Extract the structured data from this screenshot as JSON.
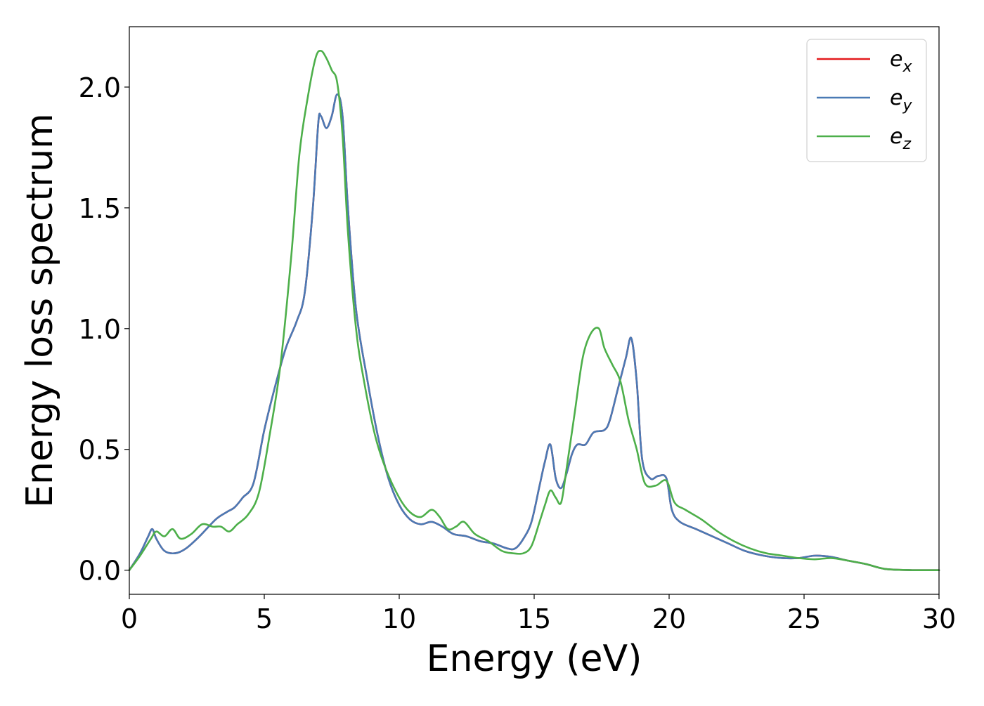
{
  "chart_data": {
    "type": "line",
    "xlabel": "Energy (eV)",
    "ylabel": "Energy loss spectrum",
    "xlim": [
      0,
      30
    ],
    "ylim": [
      -0.1,
      2.25
    ],
    "xticks": [
      0,
      5,
      10,
      15,
      20,
      25,
      30
    ],
    "xtick_labels": [
      "0",
      "5",
      "10",
      "15",
      "20",
      "25",
      "30"
    ],
    "yticks": [
      0.0,
      0.5,
      1.0,
      1.5,
      2.0
    ],
    "ytick_labels": [
      "0.0",
      "0.5",
      "1.0",
      "1.5",
      "2.0"
    ],
    "grid": false,
    "legend_position": "top-right",
    "series": [
      {
        "name": "e_x",
        "label_main": "e",
        "label_sub": "x",
        "color": "#e41a1c",
        "x": [
          0,
          0.4,
          0.7,
          0.85,
          1.0,
          1.3,
          1.7,
          2.1,
          2.6,
          3.2,
          3.6,
          3.9,
          4.2,
          4.6,
          5.0,
          5.4,
          5.8,
          6.2,
          6.5,
          6.8,
          7.0,
          7.1,
          7.3,
          7.5,
          7.7,
          7.9,
          8.1,
          8.4,
          8.8,
          9.2,
          9.6,
          10.0,
          10.4,
          10.8,
          11.2,
          11.6,
          12.0,
          12.5,
          13.0,
          13.5,
          14.0,
          14.3,
          14.6,
          14.9,
          15.2,
          15.4,
          15.6,
          15.8,
          16.0,
          16.2,
          16.4,
          16.6,
          16.9,
          17.2,
          17.6,
          17.8,
          18.1,
          18.4,
          18.6,
          18.8,
          19.0,
          19.3,
          19.6,
          19.9,
          20.1,
          20.4,
          21.0,
          21.6,
          22.2,
          22.8,
          23.5,
          24.2,
          24.8,
          25.4,
          26.0,
          26.6,
          27.3,
          28.0,
          29.0,
          30.0
        ],
        "values": [
          0.0,
          0.07,
          0.14,
          0.17,
          0.13,
          0.08,
          0.07,
          0.09,
          0.14,
          0.21,
          0.24,
          0.26,
          0.3,
          0.36,
          0.58,
          0.76,
          0.92,
          1.03,
          1.15,
          1.5,
          1.85,
          1.88,
          1.83,
          1.88,
          1.97,
          1.88,
          1.5,
          1.08,
          0.8,
          0.56,
          0.38,
          0.27,
          0.21,
          0.19,
          0.2,
          0.18,
          0.15,
          0.14,
          0.12,
          0.11,
          0.09,
          0.09,
          0.13,
          0.2,
          0.35,
          0.45,
          0.52,
          0.38,
          0.34,
          0.4,
          0.48,
          0.52,
          0.52,
          0.57,
          0.58,
          0.62,
          0.75,
          0.88,
          0.96,
          0.78,
          0.46,
          0.38,
          0.39,
          0.38,
          0.25,
          0.2,
          0.17,
          0.14,
          0.11,
          0.08,
          0.06,
          0.05,
          0.05,
          0.06,
          0.055,
          0.04,
          0.025,
          0.005,
          0.0,
          0.0
        ]
      },
      {
        "name": "e_y",
        "label_main": "e",
        "label_sub": "y",
        "color": "#4a7ab5",
        "x": [
          0,
          0.4,
          0.7,
          0.85,
          1.0,
          1.3,
          1.7,
          2.1,
          2.6,
          3.2,
          3.6,
          3.9,
          4.2,
          4.6,
          5.0,
          5.4,
          5.8,
          6.2,
          6.5,
          6.8,
          7.0,
          7.1,
          7.3,
          7.5,
          7.7,
          7.9,
          8.1,
          8.4,
          8.8,
          9.2,
          9.6,
          10.0,
          10.4,
          10.8,
          11.2,
          11.6,
          12.0,
          12.5,
          13.0,
          13.5,
          14.0,
          14.3,
          14.6,
          14.9,
          15.2,
          15.4,
          15.6,
          15.8,
          16.0,
          16.2,
          16.4,
          16.6,
          16.9,
          17.2,
          17.6,
          17.8,
          18.1,
          18.4,
          18.6,
          18.8,
          19.0,
          19.3,
          19.6,
          19.9,
          20.1,
          20.4,
          21.0,
          21.6,
          22.2,
          22.8,
          23.5,
          24.2,
          24.8,
          25.4,
          26.0,
          26.6,
          27.3,
          28.0,
          29.0,
          30.0
        ],
        "values": [
          0.0,
          0.07,
          0.14,
          0.17,
          0.13,
          0.08,
          0.07,
          0.09,
          0.14,
          0.21,
          0.24,
          0.26,
          0.3,
          0.36,
          0.58,
          0.76,
          0.92,
          1.03,
          1.15,
          1.5,
          1.85,
          1.88,
          1.83,
          1.88,
          1.97,
          1.88,
          1.5,
          1.08,
          0.8,
          0.56,
          0.38,
          0.27,
          0.21,
          0.19,
          0.2,
          0.18,
          0.15,
          0.14,
          0.12,
          0.11,
          0.09,
          0.09,
          0.13,
          0.2,
          0.35,
          0.45,
          0.52,
          0.38,
          0.34,
          0.4,
          0.48,
          0.52,
          0.52,
          0.57,
          0.58,
          0.62,
          0.75,
          0.88,
          0.96,
          0.78,
          0.46,
          0.38,
          0.39,
          0.38,
          0.25,
          0.2,
          0.17,
          0.14,
          0.11,
          0.08,
          0.06,
          0.05,
          0.05,
          0.06,
          0.055,
          0.04,
          0.025,
          0.005,
          0.0,
          0.0
        ]
      },
      {
        "name": "e_z",
        "label_main": "e",
        "label_sub": "z",
        "color": "#4daf4a",
        "x": [
          0,
          0.4,
          0.8,
          1.0,
          1.3,
          1.6,
          1.9,
          2.3,
          2.7,
          3.1,
          3.4,
          3.7,
          4.0,
          4.4,
          4.8,
          5.2,
          5.6,
          6.0,
          6.3,
          6.6,
          6.9,
          7.1,
          7.3,
          7.5,
          7.7,
          7.9,
          8.1,
          8.4,
          8.7,
          9.1,
          9.5,
          10.0,
          10.4,
          10.8,
          11.2,
          11.5,
          11.8,
          12.1,
          12.4,
          12.8,
          13.3,
          13.8,
          14.2,
          14.6,
          14.9,
          15.2,
          15.4,
          15.6,
          15.8,
          16.0,
          16.2,
          16.5,
          16.8,
          17.1,
          17.4,
          17.6,
          17.9,
          18.2,
          18.5,
          18.8,
          19.1,
          19.5,
          19.9,
          20.2,
          20.6,
          21.2,
          21.8,
          22.4,
          23.0,
          23.6,
          24.2,
          24.8,
          25.4,
          26.0,
          26.6,
          27.3,
          28.0,
          29.0,
          30.0
        ],
        "values": [
          0.0,
          0.06,
          0.13,
          0.16,
          0.14,
          0.17,
          0.13,
          0.15,
          0.19,
          0.18,
          0.18,
          0.16,
          0.19,
          0.23,
          0.32,
          0.56,
          0.85,
          1.3,
          1.72,
          1.95,
          2.12,
          2.15,
          2.12,
          2.07,
          2.02,
          1.8,
          1.4,
          1.0,
          0.78,
          0.56,
          0.42,
          0.3,
          0.24,
          0.22,
          0.25,
          0.22,
          0.17,
          0.18,
          0.2,
          0.15,
          0.12,
          0.08,
          0.07,
          0.07,
          0.1,
          0.2,
          0.27,
          0.33,
          0.3,
          0.28,
          0.42,
          0.65,
          0.88,
          0.98,
          1.0,
          0.92,
          0.85,
          0.78,
          0.62,
          0.5,
          0.36,
          0.35,
          0.37,
          0.28,
          0.25,
          0.21,
          0.16,
          0.12,
          0.09,
          0.07,
          0.06,
          0.05,
          0.045,
          0.05,
          0.04,
          0.025,
          0.005,
          0.0,
          0.0
        ]
      }
    ]
  }
}
